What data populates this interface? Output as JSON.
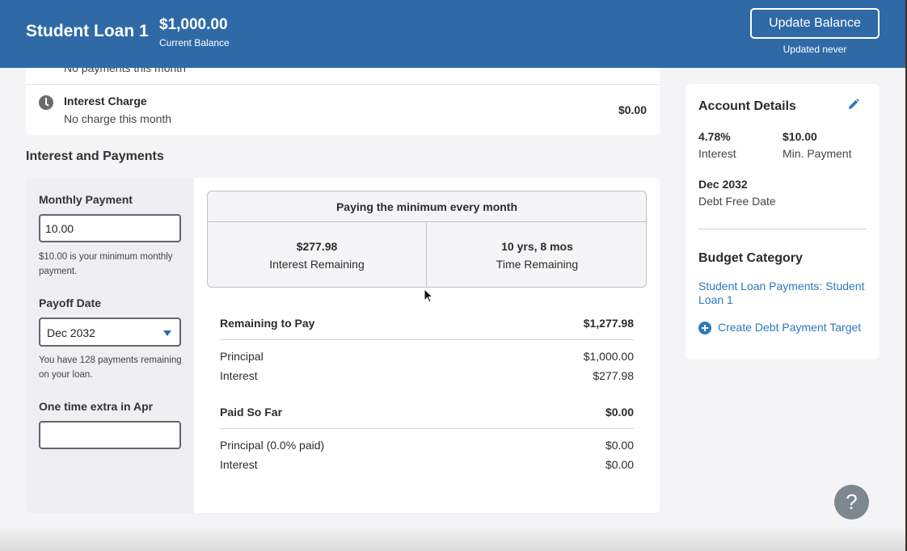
{
  "header": {
    "title": "Student Loan 1",
    "balance": "$1,000.00",
    "balance_label": "Current Balance",
    "update_button": "Update Balance",
    "updated_note": "Updated never"
  },
  "activity": {
    "cut_text": "No payments this month",
    "interest_charge_title": "Interest Charge",
    "interest_charge_sub": "No charge this month",
    "interest_charge_amount": "$0.00"
  },
  "section_title": "Interest and Payments",
  "form": {
    "monthly_payment_label": "Monthly Payment",
    "monthly_payment_value": "10.00",
    "monthly_payment_help": "$10.00 is your minimum monthly payment.",
    "payoff_date_label": "Payoff Date",
    "payoff_date_value": "Dec 2032",
    "payoff_help": "You have 128 payments remaining on your loan.",
    "extra_label": "One time extra in Apr",
    "extra_value": ""
  },
  "summary": {
    "heading": "Paying the minimum every month",
    "interest_remaining_value": "$277.98",
    "interest_remaining_label": "Interest Remaining",
    "time_remaining_value": "10 yrs, 8 mos",
    "time_remaining_label": "Time Remaining"
  },
  "remaining": {
    "label": "Remaining to Pay",
    "total": "$1,277.98",
    "principal_label": "Principal",
    "principal": "$1,000.00",
    "interest_label": "Interest",
    "interest": "$277.98"
  },
  "paid": {
    "label": "Paid So Far",
    "total": "$0.00",
    "principal_label": "Principal (0.0% paid)",
    "principal": "$0.00",
    "interest_label": "Interest",
    "interest": "$0.00"
  },
  "account": {
    "title": "Account Details",
    "interest_value": "4.78%",
    "interest_label": "Interest",
    "min_payment_value": "$10.00",
    "min_payment_label": "Min. Payment",
    "debt_free_value": "Dec 2032",
    "debt_free_label": "Debt Free Date",
    "budget_title": "Budget Category",
    "budget_link": "Student Loan Payments: Student Loan 1",
    "create_target": "Create Debt Payment Target"
  },
  "help": "?"
}
